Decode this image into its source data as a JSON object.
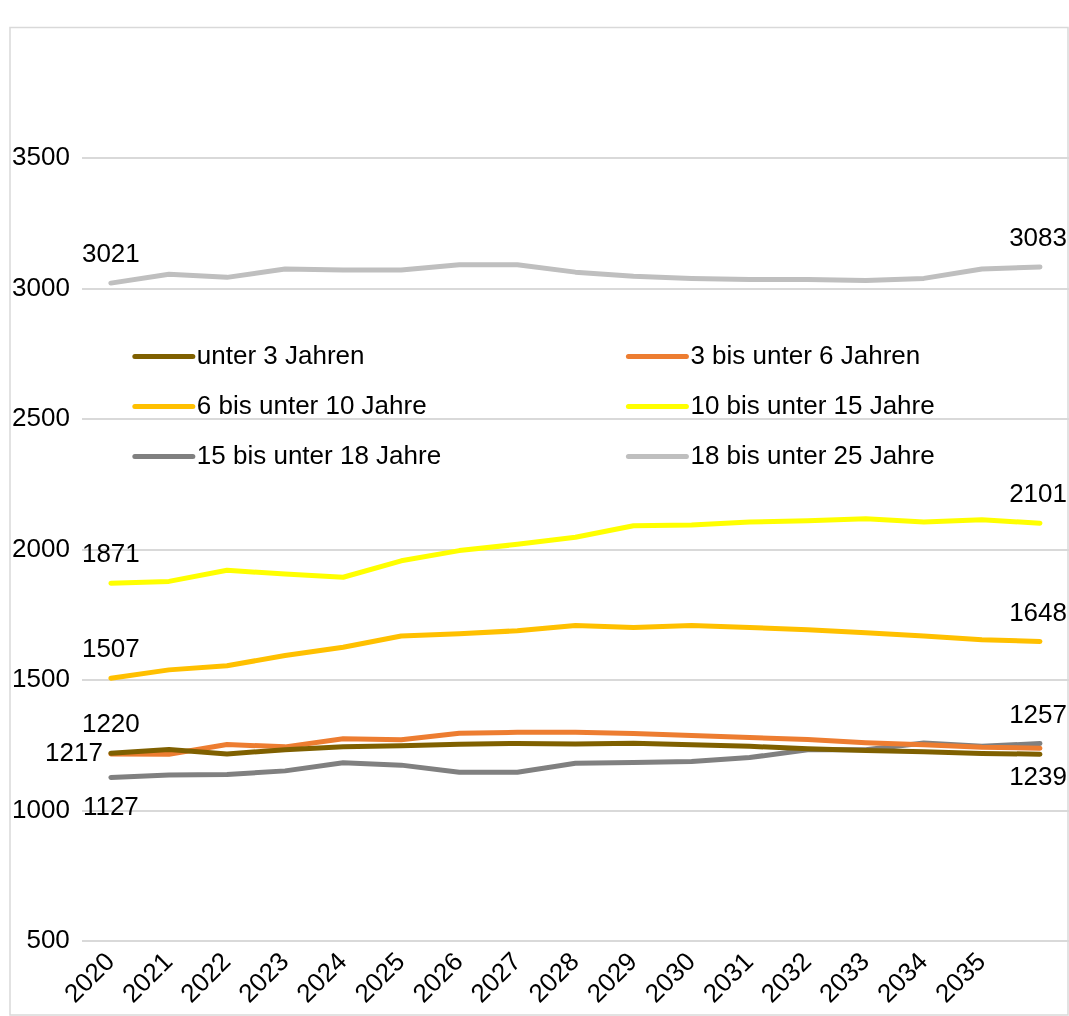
{
  "chart_data": {
    "type": "line",
    "categories": [
      "2020",
      "2021",
      "2022",
      "2023",
      "2024",
      "2025",
      "2026",
      "2027",
      "2028",
      "2029",
      "2030",
      "2031",
      "2032",
      "2033",
      "2034",
      "2035",
      null
    ],
    "series": [
      {
        "name": "unter 3 Jahren",
        "color": "#7f6000",
        "values": [
          1220,
          1234,
          1217,
          1233,
          1244,
          1248,
          1254,
          1257,
          1255,
          1258,
          1252,
          1246,
          1237,
          1230,
          1225,
          1219,
          1216
        ],
        "value_labels": [
          "1220",
          null,
          null,
          null,
          null,
          null,
          null,
          null,
          null,
          null,
          null,
          null,
          null,
          null,
          null,
          null,
          null
        ]
      },
      {
        "name": "3 bis unter 6 Jahren",
        "color": "#ed7d31",
        "values": [
          1217,
          1216,
          1253,
          1244,
          1275,
          1271,
          1296,
          1300,
          1300,
          1295,
          1288,
          1280,
          1272,
          1260,
          1252,
          1243,
          1239
        ],
        "value_labels": [
          "1217",
          null,
          null,
          null,
          null,
          null,
          null,
          null,
          null,
          null,
          null,
          null,
          null,
          null,
          null,
          null,
          "1239"
        ]
      },
      {
        "name": "6 bis unter 10 Jahre",
        "color": "#ffc000",
        "values": [
          1507,
          1539,
          1555,
          1594,
          1626,
          1669,
          1677,
          1689,
          1709,
          1701,
          1709,
          1701,
          1693,
          1681,
          1669,
          1654,
          1648
        ],
        "value_labels": [
          "1507",
          null,
          null,
          null,
          null,
          null,
          null,
          null,
          null,
          null,
          null,
          null,
          null,
          null,
          null,
          null,
          "1648"
        ]
      },
      {
        "name": "10 bis unter 15 Jahre",
        "color": "#ffff00",
        "values": [
          1871,
          1878,
          1921,
          1906,
          1894,
          1957,
          1996,
          2020,
          2047,
          2091,
          2094,
          2106,
          2110,
          2118,
          2106,
          2114,
          2101
        ],
        "value_labels": [
          "1871",
          null,
          null,
          null,
          null,
          null,
          null,
          null,
          null,
          null,
          null,
          null,
          null,
          null,
          null,
          null,
          "2101"
        ]
      },
      {
        "name": "15 bis unter 18 Jahre",
        "color": "#808080",
        "values": [
          1127,
          1136,
          1138,
          1152,
          1183,
          1174,
          1147,
          1147,
          1181,
          1184,
          1188,
          1203,
          1233,
          1233,
          1259,
          1246,
          1257
        ],
        "value_labels": [
          "1127",
          null,
          null,
          null,
          null,
          null,
          null,
          null,
          null,
          null,
          null,
          null,
          null,
          null,
          null,
          null,
          "1257"
        ]
      },
      {
        "name": "18 bis unter 25 Jahre",
        "color": "#bfbfbf",
        "values": [
          3021,
          3055,
          3043,
          3075,
          3071,
          3071,
          3091,
          3091,
          3063,
          3047,
          3039,
          3035,
          3035,
          3031,
          3039,
          3075,
          3083
        ],
        "value_labels": [
          "3021",
          null,
          null,
          null,
          null,
          null,
          null,
          null,
          null,
          null,
          null,
          null,
          null,
          null,
          null,
          null,
          "3083"
        ]
      }
    ],
    "ylim": [
      500,
      4000
    ],
    "yticks": [
      500,
      1000,
      1500,
      2000,
      2500,
      3000,
      3500
    ],
    "grid": "y",
    "legend": "top",
    "marker": "none",
    "line_style": "solid"
  }
}
